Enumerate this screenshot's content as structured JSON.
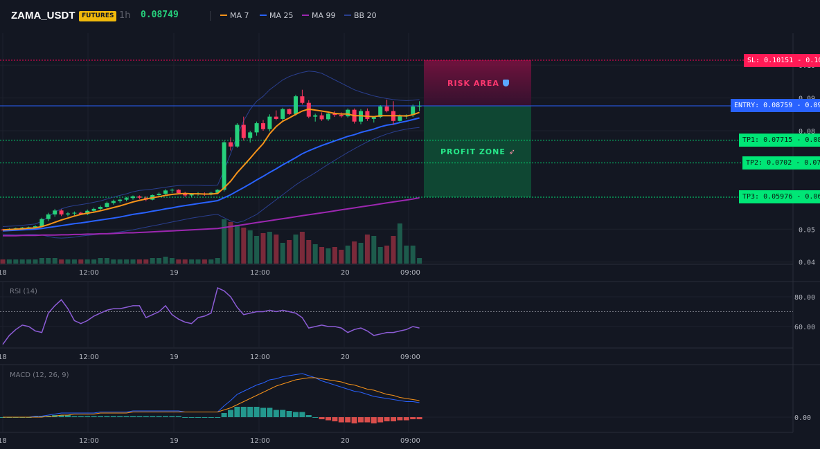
{
  "header": {
    "symbol": "ZAMA_USDT",
    "market_badge": "FUTURES",
    "timeframe": "1h",
    "last_price": "0.08749",
    "indicators": [
      {
        "label": "MA 7",
        "color": "#f7931a"
      },
      {
        "label": "MA 25",
        "color": "#2962ff"
      },
      {
        "label": "MA 99",
        "color": "#9c27b0"
      },
      {
        "label": "BB 20",
        "color": "#2a3f8f"
      }
    ]
  },
  "trade_levels": {
    "sl": "SL: 0.10151",
    "entry": "ENTRY: 0.08759",
    "tp1": "TP1: 0.07715",
    "tp2": "TP2: 0.0702",
    "tp3": "TP3: 0.05976",
    "risk_label": "RISK AREA",
    "profit_label": "PROFIT ZONE",
    "risk_icon": "shield-icon",
    "profit_icon": "rocket-icon",
    "risk_color": "#ff0055",
    "profit_color": "#00e676",
    "entry_color": "#2962ff"
  },
  "axes": {
    "price_ticks": [
      "0.10",
      "0.09",
      "0.08",
      "0.08",
      "0.07",
      "0.06",
      "0.05",
      "0.04"
    ],
    "time_ticks": [
      "18",
      "12:00",
      "19",
      "12:00",
      "20",
      "09:00"
    ],
    "rsi_ticks": [
      "80.00",
      "60.00"
    ],
    "macd_ticks": [
      "0.00"
    ]
  },
  "rsi_panel": {
    "title": "RSI (14)"
  },
  "macd_panel": {
    "title": "MACD (12, 26, 9)"
  },
  "chart_data": {
    "type": "candlestick",
    "up_color": "#26d07c",
    "down_color": "#ff3860",
    "ohlc": [
      [
        0.0499,
        0.0501,
        0.0496,
        0.0498
      ],
      [
        0.0498,
        0.0503,
        0.0496,
        0.0501
      ],
      [
        0.0501,
        0.0505,
        0.0499,
        0.0503
      ],
      [
        0.0503,
        0.0507,
        0.0502,
        0.0505
      ],
      [
        0.0505,
        0.0508,
        0.0503,
        0.0506
      ],
      [
        0.0506,
        0.0512,
        0.0504,
        0.0509
      ],
      [
        0.0509,
        0.0535,
        0.0507,
        0.0531
      ],
      [
        0.0531,
        0.055,
        0.0525,
        0.0545
      ],
      [
        0.0545,
        0.0562,
        0.0538,
        0.0557
      ],
      [
        0.0557,
        0.0561,
        0.054,
        0.0545
      ],
      [
        0.0545,
        0.0552,
        0.0539,
        0.0548
      ],
      [
        0.0548,
        0.0554,
        0.0542,
        0.055
      ],
      [
        0.055,
        0.0553,
        0.0543,
        0.0546
      ],
      [
        0.0546,
        0.056,
        0.0543,
        0.0556
      ],
      [
        0.0556,
        0.0566,
        0.0552,
        0.0562
      ],
      [
        0.0562,
        0.0572,
        0.0557,
        0.0568
      ],
      [
        0.0568,
        0.0584,
        0.0565,
        0.058
      ],
      [
        0.058,
        0.059,
        0.0575,
        0.0586
      ],
      [
        0.0586,
        0.0593,
        0.058,
        0.059
      ],
      [
        0.059,
        0.0598,
        0.0585,
        0.0595
      ],
      [
        0.0595,
        0.0603,
        0.059,
        0.06
      ],
      [
        0.06,
        0.0603,
        0.0592,
        0.0596
      ],
      [
        0.0596,
        0.06,
        0.0585,
        0.059
      ],
      [
        0.059,
        0.0606,
        0.0588,
        0.0604
      ],
      [
        0.0604,
        0.0612,
        0.0598,
        0.0608
      ],
      [
        0.0608,
        0.0622,
        0.0602,
        0.0618
      ],
      [
        0.0618,
        0.0624,
        0.061,
        0.062
      ],
      [
        0.062,
        0.0622,
        0.0606,
        0.061
      ],
      [
        0.061,
        0.0614,
        0.0598,
        0.0603
      ],
      [
        0.0603,
        0.061,
        0.0598,
        0.0606
      ],
      [
        0.0606,
        0.0613,
        0.0602,
        0.0609
      ],
      [
        0.0609,
        0.0612,
        0.0602,
        0.0607
      ],
      [
        0.0607,
        0.0614,
        0.0603,
        0.0611
      ],
      [
        0.0611,
        0.0622,
        0.0608,
        0.062
      ],
      [
        0.062,
        0.077,
        0.0615,
        0.0765
      ],
      [
        0.0765,
        0.078,
        0.074,
        0.0752
      ],
      [
        0.0752,
        0.0823,
        0.0748,
        0.0818
      ],
      [
        0.0818,
        0.0843,
        0.077,
        0.0778
      ],
      [
        0.0778,
        0.08,
        0.0764,
        0.0795
      ],
      [
        0.0795,
        0.0828,
        0.0785,
        0.0823
      ],
      [
        0.0823,
        0.0833,
        0.08,
        0.0805
      ],
      [
        0.0805,
        0.085,
        0.0798,
        0.0843
      ],
      [
        0.0843,
        0.0862,
        0.0832,
        0.0836
      ],
      [
        0.0836,
        0.087,
        0.083,
        0.0866
      ],
      [
        0.0866,
        0.0868,
        0.0848,
        0.0851
      ],
      [
        0.0851,
        0.091,
        0.0846,
        0.0905
      ],
      [
        0.0905,
        0.0925,
        0.088,
        0.0885
      ],
      [
        0.0885,
        0.0893,
        0.0838,
        0.0843
      ],
      [
        0.0843,
        0.0852,
        0.0828,
        0.0847
      ],
      [
        0.0847,
        0.0856,
        0.083,
        0.0835
      ],
      [
        0.0835,
        0.0855,
        0.083,
        0.0852
      ],
      [
        0.0852,
        0.086,
        0.0842,
        0.0848
      ],
      [
        0.0848,
        0.0856,
        0.084,
        0.0844
      ],
      [
        0.0844,
        0.0868,
        0.084,
        0.0864
      ],
      [
        0.0864,
        0.0868,
        0.0822,
        0.0828
      ],
      [
        0.0828,
        0.0866,
        0.082,
        0.086
      ],
      [
        0.086,
        0.0868,
        0.083,
        0.0836
      ],
      [
        0.0836,
        0.0845,
        0.0825,
        0.0842
      ],
      [
        0.0842,
        0.0878,
        0.0838,
        0.0874
      ],
      [
        0.0874,
        0.0895,
        0.0856,
        0.086
      ],
      [
        0.086,
        0.089,
        0.0818,
        0.083
      ],
      [
        0.083,
        0.085,
        0.0826,
        0.0844
      ],
      [
        0.0844,
        0.085,
        0.0836,
        0.0848
      ],
      [
        0.0848,
        0.088,
        0.0842,
        0.0874
      ],
      [
        0.0874,
        0.089,
        0.086,
        0.0876
      ]
    ],
    "ma7": [
      0.0498,
      0.0499,
      0.05,
      0.0501,
      0.0503,
      0.0504,
      0.0508,
      0.0514,
      0.0521,
      0.0528,
      0.0534,
      0.054,
      0.0545,
      0.0549,
      0.0552,
      0.0556,
      0.0561,
      0.0566,
      0.0571,
      0.0577,
      0.0583,
      0.0588,
      0.0592,
      0.0596,
      0.0599,
      0.0603,
      0.0606,
      0.0608,
      0.0609,
      0.0608,
      0.0608,
      0.0607,
      0.0607,
      0.0609,
      0.0626,
      0.0646,
      0.0672,
      0.0694,
      0.0716,
      0.0739,
      0.0761,
      0.0791,
      0.0813,
      0.0829,
      0.0839,
      0.085,
      0.086,
      0.0866,
      0.0863,
      0.086,
      0.0857,
      0.0853,
      0.0851,
      0.0851,
      0.0846,
      0.0846,
      0.0844,
      0.0843,
      0.0846,
      0.0846,
      0.0846,
      0.0846,
      0.0845,
      0.0849,
      0.0856
    ],
    "ma25": [
      0.0495,
      0.0496,
      0.0497,
      0.0498,
      0.0499,
      0.05,
      0.0502,
      0.0505,
      0.0508,
      0.0511,
      0.0514,
      0.0517,
      0.0519,
      0.0522,
      0.0525,
      0.0528,
      0.0531,
      0.0534,
      0.0537,
      0.0541,
      0.0545,
      0.0548,
      0.0551,
      0.0555,
      0.0558,
      0.0562,
      0.0565,
      0.0569,
      0.0572,
      0.0575,
      0.0578,
      0.0581,
      0.0584,
      0.0587,
      0.0596,
      0.0605,
      0.0616,
      0.0627,
      0.0638,
      0.065,
      0.0661,
      0.0673,
      0.0684,
      0.0696,
      0.0707,
      0.0718,
      0.073,
      0.0739,
      0.0747,
      0.0755,
      0.0762,
      0.0769,
      0.0776,
      0.0783,
      0.0788,
      0.0795,
      0.08,
      0.0805,
      0.0812,
      0.0817,
      0.082,
      0.0825,
      0.0829,
      0.0834,
      0.0839
    ],
    "ma99": [
      0.048,
      0.048,
      0.048,
      0.0481,
      0.0481,
      0.0481,
      0.0482,
      0.0482,
      0.0482,
      0.0483,
      0.0483,
      0.0484,
      0.0484,
      0.0485,
      0.0485,
      0.0486,
      0.0486,
      0.0487,
      0.0488,
      0.0489,
      0.0489,
      0.049,
      0.0491,
      0.0492,
      0.0493,
      0.0494,
      0.0495,
      0.0496,
      0.0497,
      0.0498,
      0.0499,
      0.05,
      0.0501,
      0.0502,
      0.0505,
      0.0508,
      0.0511,
      0.0514,
      0.0517,
      0.052,
      0.0523,
      0.0526,
      0.0529,
      0.0532,
      0.0535,
      0.0538,
      0.0541,
      0.0544,
      0.0547,
      0.055,
      0.0553,
      0.0556,
      0.0559,
      0.0562,
      0.0565,
      0.0568,
      0.0571,
      0.0574,
      0.0577,
      0.058,
      0.0583,
      0.0586,
      0.0589,
      0.0592,
      0.0596
    ],
    "bb_upper": [
      0.0508,
      0.0509,
      0.051,
      0.0512,
      0.0514,
      0.0516,
      0.0524,
      0.0538,
      0.0552,
      0.0562,
      0.0568,
      0.0572,
      0.0575,
      0.0578,
      0.0582,
      0.0586,
      0.0592,
      0.0598,
      0.0603,
      0.0608,
      0.0614,
      0.0618,
      0.062,
      0.0622,
      0.0625,
      0.0628,
      0.0631,
      0.0633,
      0.0634,
      0.0634,
      0.0634,
      0.0633,
      0.0633,
      0.0634,
      0.068,
      0.073,
      0.0785,
      0.083,
      0.0865,
      0.089,
      0.0905,
      0.0925,
      0.094,
      0.0955,
      0.0965,
      0.0972,
      0.0978,
      0.0982,
      0.098,
      0.0975,
      0.0965,
      0.0955,
      0.0945,
      0.0935,
      0.0925,
      0.0918,
      0.0912,
      0.0906,
      0.0902,
      0.0898,
      0.0895,
      0.0893,
      0.0892,
      0.0893,
      0.0895
    ],
    "bb_lower": [
      0.0485,
      0.0484,
      0.0483,
      0.0483,
      0.0484,
      0.0484,
      0.0482,
      0.0478,
      0.0474,
      0.0473,
      0.0474,
      0.0476,
      0.0479,
      0.0481,
      0.0483,
      0.0485,
      0.0487,
      0.0489,
      0.0492,
      0.0495,
      0.0498,
      0.0502,
      0.0506,
      0.051,
      0.0514,
      0.0518,
      0.0522,
      0.0526,
      0.053,
      0.0534,
      0.0537,
      0.054,
      0.0543,
      0.0545,
      0.0535,
      0.0525,
      0.052,
      0.0525,
      0.0535,
      0.0545,
      0.056,
      0.0575,
      0.059,
      0.0605,
      0.062,
      0.0635,
      0.0648,
      0.066,
      0.0672,
      0.0685,
      0.0698,
      0.071,
      0.0722,
      0.0734,
      0.0745,
      0.0756,
      0.0766,
      0.0775,
      0.0783,
      0.079,
      0.0796,
      0.0801,
      0.0805,
      0.0808,
      0.081
    ],
    "volume": [
      3,
      3,
      3,
      3,
      3,
      3,
      4,
      4,
      4,
      3,
      3,
      3,
      3,
      3,
      3,
      4,
      4,
      3,
      3,
      3,
      3,
      3,
      3,
      4,
      4,
      5,
      4,
      3,
      3,
      3,
      3,
      3,
      3,
      4,
      32,
      30,
      28,
      26,
      24,
      20,
      22,
      23,
      21,
      15,
      17,
      21,
      23,
      17,
      14,
      12,
      11,
      12,
      10,
      13,
      16,
      15,
      21,
      20,
      12,
      13,
      20,
      29,
      13,
      13,
      4
    ],
    "rsi": [
      48,
      54,
      58,
      61,
      60,
      57,
      56,
      69,
      74,
      78,
      72,
      64,
      62,
      64,
      67,
      69,
      71,
      72,
      72,
      73,
      74,
      74,
      66,
      68,
      70,
      74,
      68,
      65,
      63,
      62,
      66,
      67,
      69,
      86,
      84,
      80,
      73,
      68,
      69,
      70,
      70,
      71,
      70,
      71,
      70,
      69,
      66,
      59,
      60,
      61,
      60,
      60,
      59,
      56,
      58,
      59,
      57,
      54,
      55,
      56,
      56,
      57,
      58,
      60,
      59
    ],
    "macd": [
      0.0,
      0.0,
      0.0,
      0.0,
      0.0,
      0.0001,
      0.0001,
      0.0002,
      0.0003,
      0.0004,
      0.0004,
      0.0004,
      0.0004,
      0.0004,
      0.0004,
      0.0005,
      0.0005,
      0.0005,
      0.0005,
      0.0005,
      0.0006,
      0.0006,
      0.0006,
      0.0006,
      0.0006,
      0.0006,
      0.0006,
      0.0006,
      0.0005,
      0.0005,
      0.0005,
      0.0005,
      0.0005,
      0.0005,
      0.0011,
      0.0016,
      0.0022,
      0.0025,
      0.0028,
      0.0031,
      0.0033,
      0.0036,
      0.0037,
      0.0039,
      0.004,
      0.0041,
      0.0042,
      0.004,
      0.0038,
      0.0035,
      0.0033,
      0.0031,
      0.0029,
      0.0027,
      0.0025,
      0.0024,
      0.0022,
      0.002,
      0.0019,
      0.0018,
      0.0017,
      0.0016,
      0.0015,
      0.0015,
      0.0014
    ],
    "macd_signal": [
      0.0,
      0.0,
      0.0,
      0.0,
      0.0,
      0.0,
      0.0,
      0.0001,
      0.0001,
      0.0002,
      0.0002,
      0.0003,
      0.0003,
      0.0003,
      0.0003,
      0.0004,
      0.0004,
      0.0004,
      0.0004,
      0.0004,
      0.0005,
      0.0005,
      0.0005,
      0.0005,
      0.0005,
      0.0005,
      0.0005,
      0.0005,
      0.0005,
      0.0005,
      0.0005,
      0.0005,
      0.0005,
      0.0005,
      0.0007,
      0.0009,
      0.0012,
      0.0015,
      0.0018,
      0.0021,
      0.0024,
      0.0027,
      0.003,
      0.0032,
      0.0034,
      0.0036,
      0.0037,
      0.0038,
      0.0038,
      0.0037,
      0.0036,
      0.0035,
      0.0034,
      0.0032,
      0.0031,
      0.0029,
      0.0027,
      0.0026,
      0.0024,
      0.0022,
      0.0021,
      0.0019,
      0.0018,
      0.0017,
      0.0016
    ],
    "macd_hist": [
      0.0,
      0.0,
      0.0,
      0.0,
      0.0,
      0.0001,
      0.0001,
      0.0001,
      0.0002,
      0.0002,
      0.0002,
      0.0001,
      0.0001,
      0.0001,
      0.0001,
      0.0001,
      0.0001,
      0.0001,
      0.0001,
      0.0001,
      0.0001,
      0.0001,
      0.0001,
      0.0001,
      0.0001,
      0.0001,
      0.0001,
      0.0001,
      0.0,
      0.0,
      0.0,
      0.0,
      0.0,
      0.0,
      0.0004,
      0.0007,
      0.001,
      0.001,
      0.001,
      0.001,
      0.0009,
      0.0009,
      0.0007,
      0.0007,
      0.0006,
      0.0005,
      0.0005,
      0.0002,
      0.0,
      -0.0002,
      -0.0003,
      -0.0004,
      -0.0005,
      -0.0005,
      -0.0006,
      -0.0005,
      -0.0005,
      -0.0006,
      -0.0005,
      -0.0004,
      -0.0004,
      -0.0003,
      -0.0003,
      -0.0002,
      -0.0002
    ]
  }
}
